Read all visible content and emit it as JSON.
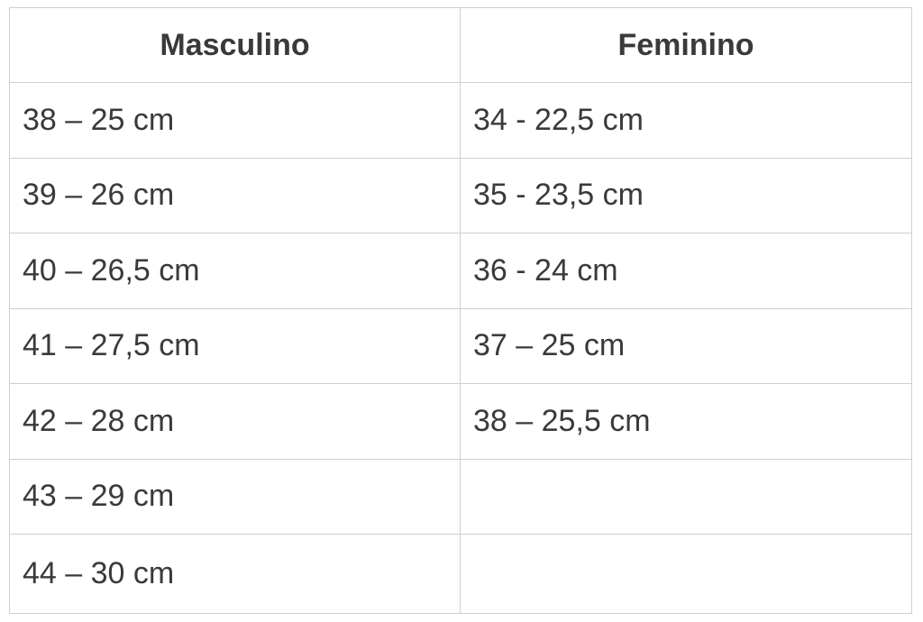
{
  "table": {
    "headers": [
      "Masculino",
      "Feminino"
    ],
    "rows": [
      [
        "38 – 25 cm",
        "34 - 22,5 cm"
      ],
      [
        "39 – 26 cm",
        "35 - 23,5 cm"
      ],
      [
        "40 – 26,5 cm",
        "36 - 24 cm"
      ],
      [
        "41 – 27,5 cm",
        "37 – 25 cm"
      ],
      [
        "42 – 28 cm",
        "38 – 25,5 cm"
      ],
      [
        "43 – 29 cm",
        ""
      ],
      [
        "44 – 30 cm",
        ""
      ]
    ]
  }
}
